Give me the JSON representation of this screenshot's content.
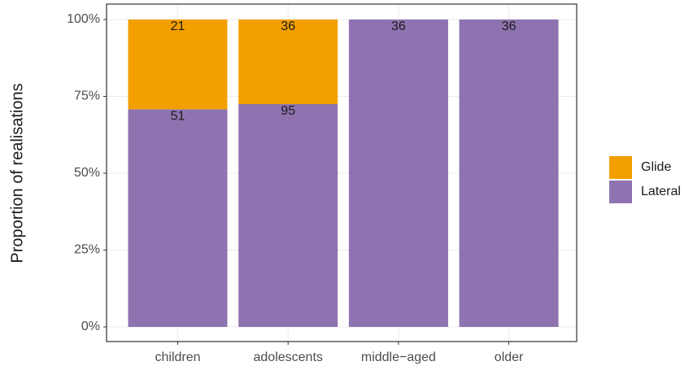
{
  "chart_data": {
    "type": "stacked-bar",
    "y_label": "Proportion of realisations",
    "categories": [
      "children",
      "adolescents",
      "middle−aged",
      "older"
    ],
    "series": [
      {
        "name": "Lateral",
        "color": "#8e73b0",
        "values": [
          70.8,
          72.5,
          100,
          100
        ],
        "counts": [
          51,
          95,
          36,
          36
        ]
      },
      {
        "name": "Glide",
        "color": "#f39f00",
        "values": [
          29.2,
          27.5,
          0,
          0
        ],
        "counts": [
          21,
          36,
          null,
          null
        ]
      }
    ],
    "ylim": [
      0,
      100
    ],
    "yticks": [
      {
        "value": 0,
        "label": "0%"
      },
      {
        "value": 25,
        "label": "25%"
      },
      {
        "value": 50,
        "label": "50%"
      },
      {
        "value": 75,
        "label": "75%"
      },
      {
        "value": 100,
        "label": "100%"
      }
    ],
    "grid": true,
    "legend_order": [
      "Glide",
      "Lateral"
    ],
    "legend": "right"
  }
}
